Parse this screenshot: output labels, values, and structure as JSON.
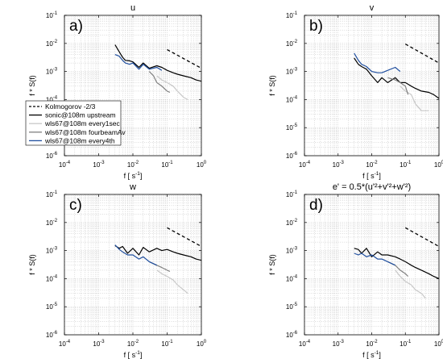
{
  "chart_data": [
    {
      "type": "line",
      "panel": "a)",
      "title": "u",
      "xlabel": "f [ s",
      "xlabel_sup": "-1",
      "xlabel_end": "]",
      "ylabel": "f * S(f)",
      "xscale": "log",
      "yscale": "log",
      "xlim": [
        0.0001,
        1
      ],
      "ylim": [
        1e-06,
        0.1
      ],
      "grid": "dotted",
      "legend_position": "bottom-left",
      "series": [
        {
          "name": "Kolmogorov -2/3",
          "color": "#000000",
          "dash": "dashed",
          "x": [
            0.1,
            1
          ],
          "y": [
            0.006,
            0.0013
          ]
        },
        {
          "name": "sonic@108m upstream",
          "color": "#000000",
          "x": [
            0.003,
            0.004,
            0.005,
            0.006,
            0.008,
            0.01,
            0.015,
            0.02,
            0.03,
            0.05,
            0.07,
            0.1,
            0.15,
            0.2,
            0.3,
            0.5,
            0.7,
            1
          ],
          "y": [
            0.009,
            0.005,
            0.0032,
            0.0025,
            0.0024,
            0.0022,
            0.0014,
            0.002,
            0.0013,
            0.0016,
            0.0014,
            0.0011,
            0.0009,
            0.0008,
            0.0007,
            0.0006,
            0.0005,
            0.00045
          ]
        },
        {
          "name": "wls67@108m every1sec",
          "color": "#c8c8c8",
          "x": [
            0.05,
            0.07,
            0.1,
            0.15,
            0.2,
            0.3,
            0.4
          ],
          "y": [
            0.0007,
            0.0005,
            0.0004,
            0.0003,
            0.0002,
            0.00012,
            0.0001
          ]
        },
        {
          "name": "wls67@108m fourbeamAv",
          "color": "#808080",
          "x": [
            0.03,
            0.04,
            0.05,
            0.07,
            0.1,
            0.12
          ],
          "y": [
            0.001,
            0.0007,
            0.0004,
            0.0003,
            0.0002,
            0.00018
          ]
        },
        {
          "name": "wls67@108m every4th",
          "color": "#1f4e9e",
          "x": [
            0.003,
            0.004,
            0.005,
            0.006,
            0.008,
            0.01,
            0.015,
            0.02,
            0.03,
            0.05,
            0.07
          ],
          "y": [
            0.004,
            0.0035,
            0.0025,
            0.002,
            0.0018,
            0.002,
            0.0012,
            0.0018,
            0.0012,
            0.0014,
            0.0011
          ]
        }
      ]
    },
    {
      "type": "line",
      "panel": "b)",
      "title": "v",
      "xlabel": "f [ s",
      "xlabel_sup": "-1",
      "xlabel_end": "]",
      "ylabel": "f * S(f)",
      "xscale": "log",
      "yscale": "log",
      "xlim": [
        0.0001,
        1
      ],
      "ylim": [
        1e-06,
        0.1
      ],
      "grid": "dotted",
      "series": [
        {
          "name": "Kolmogorov -2/3",
          "color": "#000000",
          "dash": "dashed",
          "x": [
            0.1,
            1
          ],
          "y": [
            0.0095,
            0.002
          ]
        },
        {
          "name": "sonic@108m upstream",
          "color": "#000000",
          "x": [
            0.003,
            0.004,
            0.005,
            0.007,
            0.01,
            0.015,
            0.02,
            0.03,
            0.05,
            0.07,
            0.1,
            0.15,
            0.2,
            0.3,
            0.5,
            0.7,
            1
          ],
          "y": [
            0.003,
            0.0018,
            0.0015,
            0.0012,
            0.0007,
            0.0004,
            0.0006,
            0.0004,
            0.0006,
            0.0004,
            0.0004,
            0.0003,
            0.00025,
            0.0002,
            0.00018,
            0.00015,
            0.00011
          ]
        },
        {
          "name": "wls67@108m every1sec",
          "color": "#c8c8c8",
          "x": [
            0.07,
            0.1,
            0.15,
            0.2,
            0.3,
            0.5
          ],
          "y": [
            0.0003,
            0.0002,
            0.00015,
            7e-05,
            4e-05,
            4e-05
          ]
        },
        {
          "name": "wls67@108m fourbeamAv",
          "color": "#808080",
          "x": [
            0.03,
            0.05,
            0.07,
            0.1,
            0.12
          ],
          "y": [
            0.0006,
            0.0005,
            0.0004,
            0.0003,
            0.00015
          ]
        },
        {
          "name": "wls67@108m every4th",
          "color": "#1f4e9e",
          "x": [
            0.003,
            0.004,
            0.005,
            0.007,
            0.01,
            0.015,
            0.02,
            0.03,
            0.05,
            0.07
          ],
          "y": [
            0.0045,
            0.0025,
            0.0018,
            0.0015,
            0.001,
            0.0009,
            0.0009,
            0.0011,
            0.0014,
            0.001
          ]
        }
      ]
    },
    {
      "type": "line",
      "panel": "c)",
      "title": "w",
      "xlabel": "f [ s",
      "xlabel_sup": "-1",
      "xlabel_end": "]",
      "ylabel": "f * S(f)",
      "xscale": "log",
      "yscale": "log",
      "xlim": [
        0.0001,
        1
      ],
      "ylim": [
        1e-06,
        0.1
      ],
      "grid": "dotted",
      "series": [
        {
          "name": "Kolmogorov -2/3",
          "color": "#000000",
          "dash": "dashed",
          "x": [
            0.1,
            1
          ],
          "y": [
            0.0065,
            0.0014
          ]
        },
        {
          "name": "sonic@108m upstream",
          "color": "#000000",
          "x": [
            0.003,
            0.004,
            0.005,
            0.007,
            0.01,
            0.015,
            0.02,
            0.03,
            0.05,
            0.07,
            0.1,
            0.15,
            0.2,
            0.3,
            0.5,
            0.7,
            1
          ],
          "y": [
            0.0015,
            0.0012,
            0.0014,
            0.0008,
            0.0012,
            0.0007,
            0.0013,
            0.0009,
            0.0012,
            0.001,
            0.0011,
            0.0009,
            0.0008,
            0.0007,
            0.0006,
            0.0005,
            0.00045
          ]
        },
        {
          "name": "wls67@108m every1sec",
          "color": "#c8c8c8",
          "x": [
            0.05,
            0.07,
            0.1,
            0.15,
            0.2,
            0.3,
            0.4
          ],
          "y": [
            0.0002,
            0.00015,
            0.00012,
            9e-05,
            6e-05,
            4e-05,
            3e-05
          ]
        },
        {
          "name": "wls67@108m fourbeamAv",
          "color": "#808080",
          "x": [
            0.03,
            0.05,
            0.07,
            0.1,
            0.12
          ],
          "y": [
            0.0004,
            0.0003,
            0.00025,
            0.0002,
            0.00018
          ]
        },
        {
          "name": "wls67@108m every4th",
          "color": "#1f4e9e",
          "x": [
            0.003,
            0.004,
            0.005,
            0.007,
            0.01,
            0.015,
            0.02,
            0.03,
            0.05
          ],
          "y": [
            0.0016,
            0.0011,
            0.0009,
            0.0007,
            0.0007,
            0.0005,
            0.0006,
            0.0004,
            0.0003
          ]
        }
      ]
    },
    {
      "type": "line",
      "panel": "d)",
      "title": "e' = 0.5*(u'²+v'²+w'²)",
      "xlabel": "f [ s",
      "xlabel_sup": "-1",
      "xlabel_end": "]",
      "ylabel": "f * S(f)",
      "xscale": "log",
      "yscale": "log",
      "xlim": [
        0.0001,
        1
      ],
      "ylim": [
        1e-06,
        0.1
      ],
      "grid": "dotted",
      "series": [
        {
          "name": "Kolmogorov -2/3",
          "color": "#000000",
          "dash": "dashed",
          "x": [
            0.1,
            1
          ],
          "y": [
            0.0065,
            0.0014
          ]
        },
        {
          "name": "sonic@108m upstream",
          "color": "#000000",
          "x": [
            0.003,
            0.004,
            0.005,
            0.007,
            0.01,
            0.015,
            0.02,
            0.03,
            0.05,
            0.07,
            0.1,
            0.15,
            0.2,
            0.3,
            0.5,
            0.7,
            1
          ],
          "y": [
            0.0012,
            0.0011,
            0.0008,
            0.0012,
            0.0006,
            0.0009,
            0.0007,
            0.0007,
            0.0006,
            0.0005,
            0.0004,
            0.0003,
            0.00025,
            0.0002,
            0.00015,
            0.00012,
            0.0001
          ]
        },
        {
          "name": "wls67@108m every1sec",
          "color": "#c8c8c8",
          "x": [
            0.05,
            0.07,
            0.1,
            0.15,
            0.2,
            0.3,
            0.4
          ],
          "y": [
            0.0002,
            0.00012,
            8e-05,
            6e-05,
            4e-05,
            3e-05,
            2e-05
          ]
        },
        {
          "name": "wls67@108m fourbeamAv",
          "color": "#808080",
          "x": [
            0.03,
            0.05,
            0.07,
            0.1,
            0.12
          ],
          "y": [
            0.0004,
            0.0003,
            0.0002,
            0.00015,
            0.00012
          ]
        },
        {
          "name": "wls67@108m every4th",
          "color": "#1f4e9e",
          "x": [
            0.003,
            0.004,
            0.005,
            0.007,
            0.01,
            0.015,
            0.02,
            0.03,
            0.05
          ],
          "y": [
            0.0008,
            0.0007,
            0.0008,
            0.0006,
            0.0007,
            0.0005,
            0.0005,
            0.0004,
            0.0003
          ]
        }
      ]
    }
  ]
}
